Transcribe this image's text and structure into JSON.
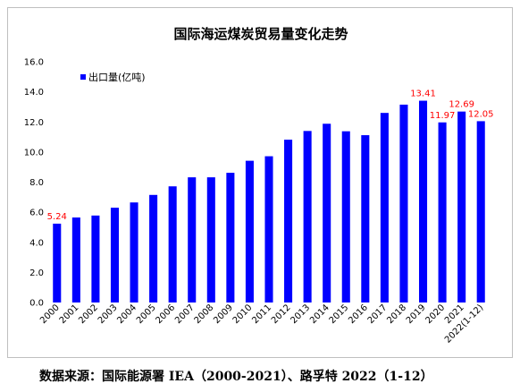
{
  "chart_data": {
    "type": "bar",
    "title": "国际海运煤炭贸易量变化走势",
    "categories": [
      "2000",
      "2001",
      "2002",
      "2003",
      "2004",
      "2005",
      "2006",
      "2007",
      "2008",
      "2009",
      "2010",
      "2011",
      "2012",
      "2013",
      "2014",
      "2015",
      "2016",
      "2017",
      "2018",
      "2019",
      "2020",
      "2021",
      "2022(1-12)"
    ],
    "series": [
      {
        "name": "出口量(亿吨)",
        "color": "#0000ff",
        "values": [
          5.24,
          5.65,
          5.78,
          6.3,
          6.65,
          7.15,
          7.72,
          8.32,
          8.32,
          8.62,
          9.42,
          9.72,
          10.82,
          11.4,
          11.88,
          11.38,
          11.12,
          12.6,
          13.15,
          13.41,
          11.97,
          12.69,
          12.05
        ]
      }
    ],
    "data_labels": [
      {
        "index": 0,
        "text": "5.24"
      },
      {
        "index": 19,
        "text": "13.41"
      },
      {
        "index": 20,
        "text": "11.97"
      },
      {
        "index": 21,
        "text": "12.69"
      },
      {
        "index": 22,
        "text": "12.05"
      }
    ],
    "data_label_color": "#ff0000",
    "y_ticks": [
      "0.0",
      "2.0",
      "4.0",
      "6.0",
      "8.0",
      "10.0",
      "12.0",
      "14.0",
      "16.0"
    ],
    "ylim": [
      0,
      16
    ],
    "grid": false,
    "legend_position": "top-left"
  },
  "source_note": "数据来源：国际能源署 IEA（2000-2021）、路孚特 2022（1-12）"
}
